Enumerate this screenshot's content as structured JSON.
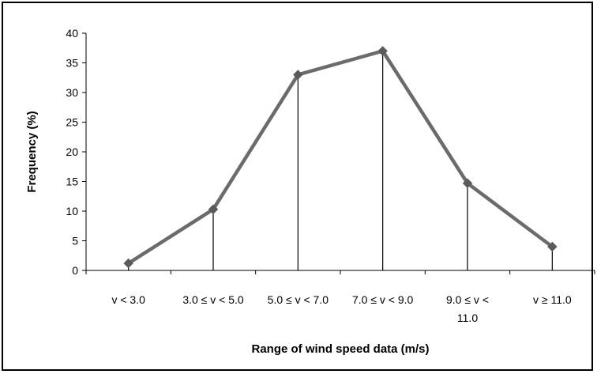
{
  "chart_data": {
    "type": "line",
    "title": "",
    "xlabel": "Range of wind speed data (m/s)",
    "ylabel": "Frequency (%)",
    "categories": [
      [
        "v < 3.0"
      ],
      [
        "3.0 ≤ v < 5.0"
      ],
      [
        "5.0 ≤ v < 7.0"
      ],
      [
        "7.0 ≤ v < 9.0"
      ],
      [
        "9.0 ≤ v <",
        "11.0"
      ],
      [
        "v ≥ 11.0"
      ]
    ],
    "values": [
      1.2,
      10.3,
      33.0,
      37.0,
      14.7,
      4.0
    ],
    "ylim": [
      0,
      40
    ],
    "yticks": [
      0,
      5,
      10,
      15,
      20,
      25,
      30,
      35,
      40
    ],
    "grid": false,
    "legend": "none",
    "drop_lines": true,
    "marker": "diamond",
    "colors": {
      "line": "#6b6b6b",
      "marker": "#5a5a5a",
      "drop_line": "#000000",
      "axis": "#000000"
    }
  }
}
